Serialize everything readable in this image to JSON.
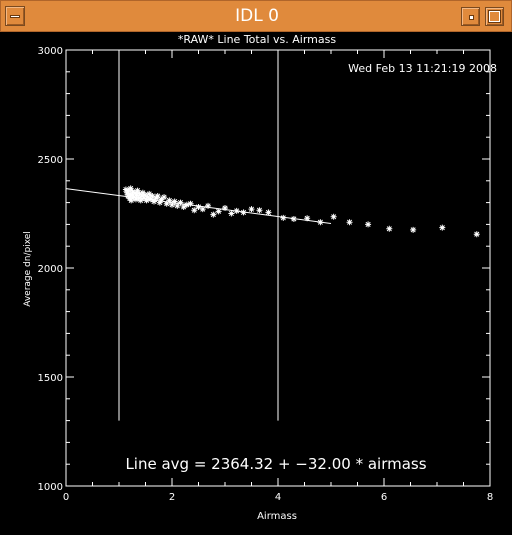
{
  "window": {
    "title": "IDL 0"
  },
  "chart_data": {
    "type": "scatter",
    "title": "*RAW* Line Total vs. Airmass",
    "timestamp": "Wed Feb 13 11:21:19 2008",
    "xlabel": "Airmass",
    "ylabel": "Average dn/pixel",
    "xlim": [
      0,
      8
    ],
    "ylim": [
      1000,
      3000
    ],
    "xticks": [
      0,
      2,
      4,
      6,
      8
    ],
    "xtick_labels": [
      "0",
      "2",
      "4",
      "6",
      "8"
    ],
    "yticks": [
      1000,
      1500,
      2000,
      2500,
      3000
    ],
    "ytick_labels": [
      "1000",
      "1500",
      "2000",
      "2500",
      "3000"
    ],
    "annotation": "Line avg = 2364.32 + −32.00 * airmass",
    "fit": {
      "intercept": 2364.32,
      "slope": -32.0,
      "x_range": [
        0,
        5
      ]
    },
    "vertical_lines": [
      {
        "x": 1.0,
        "y_range": [
          1300,
          3000
        ]
      },
      {
        "x": 4.0,
        "y_range": [
          1300,
          3000
        ]
      }
    ],
    "points": [
      [
        1.13,
        2360
      ],
      [
        1.15,
        2345
      ],
      [
        1.17,
        2330
      ],
      [
        1.18,
        2355
      ],
      [
        1.2,
        2320
      ],
      [
        1.21,
        2340
      ],
      [
        1.22,
        2365
      ],
      [
        1.23,
        2310
      ],
      [
        1.25,
        2335
      ],
      [
        1.26,
        2350
      ],
      [
        1.28,
        2325
      ],
      [
        1.3,
        2345
      ],
      [
        1.32,
        2315
      ],
      [
        1.33,
        2335
      ],
      [
        1.35,
        2355
      ],
      [
        1.37,
        2320
      ],
      [
        1.39,
        2340
      ],
      [
        1.41,
        2310
      ],
      [
        1.43,
        2330
      ],
      [
        1.45,
        2345
      ],
      [
        1.47,
        2320
      ],
      [
        1.49,
        2335
      ],
      [
        1.52,
        2310
      ],
      [
        1.54,
        2325
      ],
      [
        1.57,
        2340
      ],
      [
        1.6,
        2315
      ],
      [
        1.63,
        2330
      ],
      [
        1.66,
        2305
      ],
      [
        1.7,
        2320
      ],
      [
        1.73,
        2330
      ],
      [
        1.77,
        2300
      ],
      [
        1.8,
        2315
      ],
      [
        1.85,
        2325
      ],
      [
        1.9,
        2295
      ],
      [
        1.95,
        2310
      ],
      [
        2.0,
        2290
      ],
      [
        2.05,
        2305
      ],
      [
        2.1,
        2285
      ],
      [
        2.16,
        2300
      ],
      [
        2.22,
        2280
      ],
      [
        2.28,
        2290
      ],
      [
        2.35,
        2295
      ],
      [
        2.42,
        2265
      ],
      [
        2.5,
        2280
      ],
      [
        2.58,
        2270
      ],
      [
        2.68,
        2285
      ],
      [
        2.78,
        2245
      ],
      [
        2.88,
        2260
      ],
      [
        3.0,
        2275
      ],
      [
        3.12,
        2250
      ],
      [
        3.22,
        2262
      ],
      [
        3.35,
        2255
      ],
      [
        3.5,
        2270
      ],
      [
        3.65,
        2265
      ],
      [
        3.82,
        2255
      ],
      [
        4.1,
        2230
      ],
      [
        4.3,
        2225
      ],
      [
        4.55,
        2228
      ],
      [
        4.8,
        2210
      ],
      [
        5.05,
        2235
      ],
      [
        5.35,
        2210
      ],
      [
        5.7,
        2200
      ],
      [
        6.1,
        2180
      ],
      [
        6.55,
        2175
      ],
      [
        7.1,
        2185
      ],
      [
        7.75,
        2155
      ]
    ]
  }
}
